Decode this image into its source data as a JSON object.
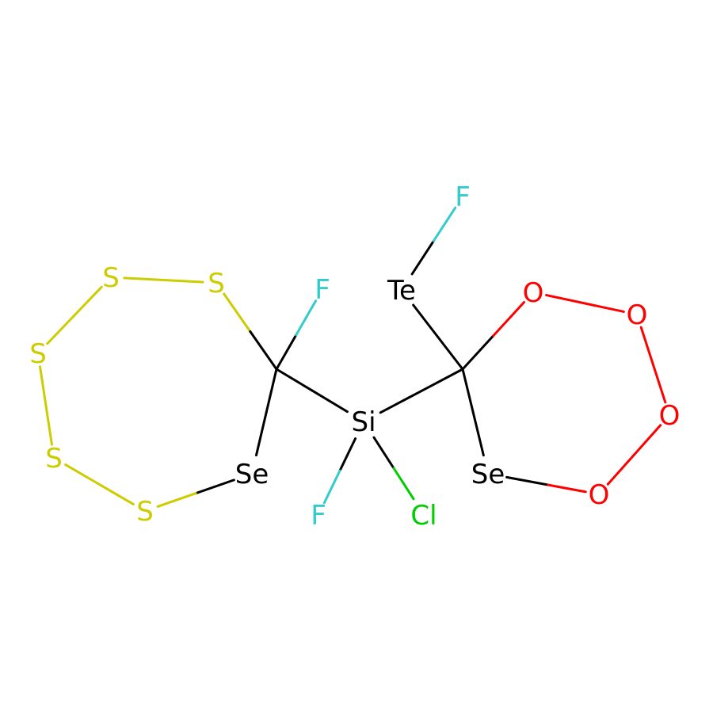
{
  "colors": {
    "background": "#ffffff",
    "C": "#000000",
    "S": "#cccc00",
    "Se": "#000000",
    "Te": "#000000",
    "Si": "#000000",
    "F": "#33cccc",
    "Cl": "#00cc00",
    "O": "#ff0000"
  },
  "molecule": {
    "atoms": [
      {
        "id": "S1",
        "element": "S",
        "label": "S"
      },
      {
        "id": "S2",
        "element": "S",
        "label": "S"
      },
      {
        "id": "S3",
        "element": "S",
        "label": "S"
      },
      {
        "id": "S4",
        "element": "S",
        "label": "S"
      },
      {
        "id": "S5",
        "element": "S",
        "label": "S"
      },
      {
        "id": "Se1",
        "element": "Se",
        "label": "Se"
      },
      {
        "id": "C1",
        "element": "C",
        "label": ""
      },
      {
        "id": "F1",
        "element": "F",
        "label": "F"
      },
      {
        "id": "Si1",
        "element": "Si",
        "label": "Si"
      },
      {
        "id": "F2",
        "element": "F",
        "label": "F"
      },
      {
        "id": "Cl1",
        "element": "Cl",
        "label": "Cl"
      },
      {
        "id": "C2",
        "element": "C",
        "label": ""
      },
      {
        "id": "Te1",
        "element": "Te",
        "label": "Te"
      },
      {
        "id": "F3",
        "element": "F",
        "label": "F"
      },
      {
        "id": "O1",
        "element": "O",
        "label": "O"
      },
      {
        "id": "O2",
        "element": "O",
        "label": "O"
      },
      {
        "id": "O3",
        "element": "O",
        "label": "O"
      },
      {
        "id": "O4",
        "element": "O",
        "label": "O"
      },
      {
        "id": "Se2",
        "element": "Se",
        "label": "Se"
      }
    ],
    "bonds": [
      [
        "S1",
        "S2"
      ],
      [
        "S2",
        "C1"
      ],
      [
        "C1",
        "Se1"
      ],
      [
        "Se1",
        "S5"
      ],
      [
        "S5",
        "S4"
      ],
      [
        "S4",
        "S3"
      ],
      [
        "S3",
        "S1"
      ],
      [
        "C1",
        "F1"
      ],
      [
        "C1",
        "Si1"
      ],
      [
        "Si1",
        "F2"
      ],
      [
        "Si1",
        "Cl1"
      ],
      [
        "Si1",
        "C2"
      ],
      [
        "C2",
        "Te1"
      ],
      [
        "Te1",
        "F3"
      ],
      [
        "C2",
        "O1"
      ],
      [
        "O1",
        "O2"
      ],
      [
        "O2",
        "O3"
      ],
      [
        "O3",
        "O4"
      ],
      [
        "O4",
        "Se2"
      ],
      [
        "Se2",
        "C2"
      ]
    ]
  }
}
